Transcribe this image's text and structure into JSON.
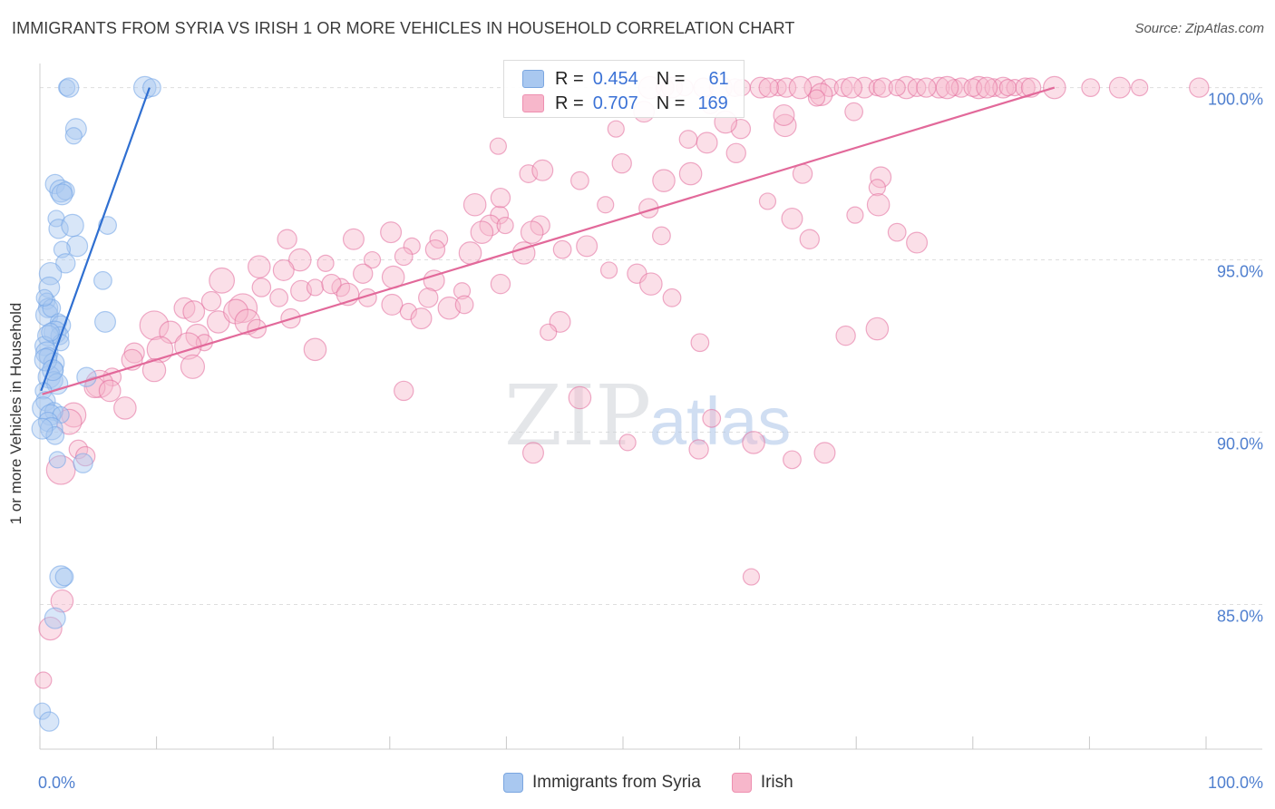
{
  "header": {
    "title": "IMMIGRANTS FROM SYRIA VS IRISH 1 OR MORE VEHICLES IN HOUSEHOLD CORRELATION CHART",
    "source": "Source: ZipAtlas.com"
  },
  "watermark": {
    "zip": "ZIP",
    "atlas": "atlas"
  },
  "legend": {
    "rows": [
      {
        "r_label": "R =",
        "r_value": "0.454",
        "n_label": "N =",
        "n_value": "61",
        "color": "#a9c8f0"
      },
      {
        "r_label": "R =",
        "r_value": "0.707",
        "n_label": "N =",
        "n_value": "169",
        "color": "#f7b7cb"
      }
    ]
  },
  "bottom_legend": {
    "items": [
      {
        "label": "Immigrants from Syria",
        "color": "#a9c8f0"
      },
      {
        "label": "Irish",
        "color": "#f7b7cb"
      }
    ]
  },
  "chart_data": {
    "type": "scatter",
    "title": "IMMIGRANTS FROM SYRIA VS IRISH 1 OR MORE VEHICLES IN HOUSEHOLD CORRELATION CHART",
    "xlabel": "",
    "ylabel": "1 or more Vehicles in Household",
    "xlim": [
      0,
      100
    ],
    "ylim": [
      80.8,
      100.7
    ],
    "x_tick_labels": [
      "0.0%",
      "100.0%"
    ],
    "y_ticks": [
      85,
      90,
      95,
      100
    ],
    "y_tick_labels": [
      "85.0%",
      "90.0%",
      "95.0%",
      "100.0%"
    ],
    "grid": true,
    "series": [
      {
        "name": "Immigrants from Syria",
        "color": "#6fa3e6",
        "fill": "#a9c8f0",
        "trend": {
          "x": [
            0.1,
            9.4
          ],
          "y": [
            91.2,
            100.0
          ]
        },
        "points": [
          [
            2.3,
            100
          ],
          [
            2.5,
            100
          ],
          [
            9.0,
            100
          ],
          [
            9.6,
            100
          ],
          [
            3.1,
            98.8
          ],
          [
            2.9,
            98.6
          ],
          [
            1.3,
            97.2
          ],
          [
            1.8,
            97.0
          ],
          [
            2.2,
            97.0
          ],
          [
            1.9,
            96.9
          ],
          [
            1.4,
            96.2
          ],
          [
            1.6,
            95.9
          ],
          [
            2.8,
            96.0
          ],
          [
            5.8,
            96.0
          ],
          [
            3.2,
            95.4
          ],
          [
            1.9,
            95.3
          ],
          [
            2.2,
            94.9
          ],
          [
            0.9,
            94.6
          ],
          [
            5.4,
            94.4
          ],
          [
            0.8,
            94.2
          ],
          [
            0.6,
            93.8
          ],
          [
            0.7,
            93.6
          ],
          [
            0.6,
            93.4
          ],
          [
            1.0,
            93.6
          ],
          [
            5.6,
            93.2
          ],
          [
            1.6,
            93.2
          ],
          [
            1.8,
            93.1
          ],
          [
            1.3,
            92.9
          ],
          [
            1.7,
            92.8
          ],
          [
            0.7,
            92.8
          ],
          [
            1.8,
            92.6
          ],
          [
            0.4,
            92.5
          ],
          [
            0.6,
            92.3
          ],
          [
            0.7,
            92.2
          ],
          [
            1.2,
            92.0
          ],
          [
            1.3,
            91.8
          ],
          [
            4.0,
            91.6
          ],
          [
            0.8,
            91.6
          ],
          [
            1.2,
            91.5
          ],
          [
            1.5,
            91.4
          ],
          [
            0.3,
            91.2
          ],
          [
            0.5,
            90.9
          ],
          [
            0.3,
            90.7
          ],
          [
            1.2,
            90.6
          ],
          [
            0.9,
            90.5
          ],
          [
            1.8,
            90.5
          ],
          [
            0.7,
            90.3
          ],
          [
            1.0,
            90.1
          ],
          [
            1.3,
            89.9
          ],
          [
            0.2,
            90.1
          ],
          [
            1.5,
            89.2
          ],
          [
            3.7,
            89.1
          ],
          [
            1.8,
            85.8
          ],
          [
            2.1,
            85.8
          ],
          [
            1.3,
            84.6
          ],
          [
            0.2,
            81.9
          ],
          [
            0.8,
            81.6
          ],
          [
            0.5,
            92.1
          ],
          [
            0.9,
            92.9
          ],
          [
            1.1,
            91.8
          ],
          [
            0.4,
            93.9
          ]
        ]
      },
      {
        "name": "Irish",
        "color": "#e2699a",
        "fill": "#f7b7cb",
        "trend": {
          "x": [
            0.2,
            87.0
          ],
          "y": [
            91.1,
            100.0
          ]
        },
        "points": [
          [
            55.3,
            100
          ],
          [
            56.9,
            100
          ],
          [
            58.4,
            100
          ],
          [
            59.6,
            100
          ],
          [
            61.8,
            100
          ],
          [
            63.3,
            100
          ],
          [
            64.0,
            100
          ],
          [
            66.5,
            100
          ],
          [
            67.7,
            100
          ],
          [
            70.7,
            100
          ],
          [
            71.8,
            100
          ],
          [
            72.3,
            100
          ],
          [
            74.3,
            100
          ],
          [
            75.2,
            100
          ],
          [
            77.1,
            100
          ],
          [
            78.4,
            100
          ],
          [
            79.0,
            100
          ],
          [
            80.5,
            100
          ],
          [
            81.8,
            100
          ],
          [
            82.6,
            100
          ],
          [
            83.6,
            100
          ],
          [
            84.5,
            100
          ],
          [
            87.0,
            100
          ],
          [
            90.1,
            100
          ],
          [
            92.6,
            100
          ],
          [
            94.3,
            100
          ],
          [
            99.4,
            100
          ],
          [
            52.3,
            100
          ],
          [
            53.6,
            100
          ],
          [
            54.2,
            100
          ],
          [
            60.2,
            100
          ],
          [
            62.5,
            100
          ],
          [
            65.2,
            100
          ],
          [
            68.9,
            100
          ],
          [
            69.6,
            100
          ],
          [
            73.5,
            100
          ],
          [
            76.0,
            100
          ],
          [
            77.8,
            100
          ],
          [
            80.0,
            100
          ],
          [
            81.2,
            100
          ],
          [
            83.0,
            100
          ],
          [
            85.0,
            100
          ],
          [
            67.0,
            99.8
          ],
          [
            57.5,
            99.5
          ],
          [
            51.8,
            99.3
          ],
          [
            49.4,
            98.8
          ],
          [
            60.1,
            98.8
          ],
          [
            63.9,
            98.9
          ],
          [
            55.6,
            98.5
          ],
          [
            57.2,
            98.4
          ],
          [
            39.3,
            98.3
          ],
          [
            49.9,
            97.8
          ],
          [
            55.8,
            97.5
          ],
          [
            46.3,
            97.3
          ],
          [
            72.1,
            97.4
          ],
          [
            71.8,
            97.1
          ],
          [
            59.7,
            98.1
          ],
          [
            53.5,
            97.3
          ],
          [
            41.9,
            97.5
          ],
          [
            43.1,
            97.6
          ],
          [
            48.5,
            96.6
          ],
          [
            52.2,
            96.5
          ],
          [
            37.3,
            96.6
          ],
          [
            39.4,
            96.3
          ],
          [
            38.6,
            96.0
          ],
          [
            39.9,
            96.0
          ],
          [
            42.9,
            96.0
          ],
          [
            37.9,
            95.8
          ],
          [
            34.2,
            95.6
          ],
          [
            30.1,
            95.8
          ],
          [
            31.9,
            95.4
          ],
          [
            33.9,
            95.3
          ],
          [
            36.9,
            95.2
          ],
          [
            31.2,
            95.1
          ],
          [
            26.9,
            95.6
          ],
          [
            28.5,
            95.0
          ],
          [
            21.2,
            95.6
          ],
          [
            22.3,
            95.0
          ],
          [
            18.8,
            94.8
          ],
          [
            20.9,
            94.7
          ],
          [
            24.5,
            94.9
          ],
          [
            27.7,
            94.6
          ],
          [
            30.3,
            94.5
          ],
          [
            25.8,
            94.2
          ],
          [
            33.8,
            94.4
          ],
          [
            36.2,
            94.1
          ],
          [
            39.5,
            94.3
          ],
          [
            41.5,
            95.2
          ],
          [
            44.8,
            95.3
          ],
          [
            46.9,
            95.4
          ],
          [
            48.8,
            94.7
          ],
          [
            51.2,
            94.6
          ],
          [
            52.4,
            94.3
          ],
          [
            54.2,
            93.9
          ],
          [
            15.6,
            94.4
          ],
          [
            19.0,
            94.2
          ],
          [
            14.7,
            93.8
          ],
          [
            17.4,
            93.6
          ],
          [
            20.5,
            93.9
          ],
          [
            22.4,
            94.1
          ],
          [
            23.6,
            94.2
          ],
          [
            25.0,
            94.3
          ],
          [
            26.4,
            94.0
          ],
          [
            28.1,
            93.9
          ],
          [
            30.2,
            93.7
          ],
          [
            31.6,
            93.5
          ],
          [
            33.3,
            93.9
          ],
          [
            35.1,
            93.6
          ],
          [
            36.4,
            93.7
          ],
          [
            32.7,
            93.3
          ],
          [
            12.4,
            93.6
          ],
          [
            13.2,
            93.5
          ],
          [
            15.3,
            93.2
          ],
          [
            16.8,
            93.5
          ],
          [
            17.8,
            93.2
          ],
          [
            18.6,
            93.0
          ],
          [
            21.5,
            93.3
          ],
          [
            9.8,
            93.1
          ],
          [
            11.2,
            92.9
          ],
          [
            13.5,
            92.8
          ],
          [
            14.1,
            92.6
          ],
          [
            10.3,
            92.4
          ],
          [
            12.7,
            92.5
          ],
          [
            8.1,
            92.3
          ],
          [
            7.9,
            92.1
          ],
          [
            9.8,
            91.8
          ],
          [
            13.1,
            91.9
          ],
          [
            23.6,
            92.4
          ],
          [
            6.2,
            91.6
          ],
          [
            5.1,
            91.4
          ],
          [
            4.7,
            91.3
          ],
          [
            6.0,
            91.2
          ],
          [
            7.3,
            90.7
          ],
          [
            2.9,
            90.5
          ],
          [
            2.5,
            90.3
          ],
          [
            3.3,
            89.5
          ],
          [
            3.9,
            89.3
          ],
          [
            1.8,
            88.9
          ],
          [
            1.9,
            85.1
          ],
          [
            0.9,
            84.3
          ],
          [
            0.3,
            82.8
          ],
          [
            39.5,
            96.8
          ],
          [
            42.2,
            95.8
          ],
          [
            53.3,
            95.7
          ],
          [
            64.5,
            96.2
          ],
          [
            62.4,
            96.7
          ],
          [
            66.0,
            95.6
          ],
          [
            71.9,
            96.6
          ],
          [
            73.5,
            95.8
          ],
          [
            75.2,
            95.5
          ],
          [
            69.9,
            96.3
          ],
          [
            65.4,
            97.5
          ],
          [
            58.8,
            99.0
          ],
          [
            69.8,
            99.3
          ],
          [
            63.8,
            99.2
          ],
          [
            66.6,
            99.7
          ],
          [
            69.1,
            92.8
          ],
          [
            71.8,
            93.0
          ],
          [
            56.6,
            92.6
          ],
          [
            44.6,
            93.2
          ],
          [
            43.6,
            92.9
          ],
          [
            31.2,
            91.2
          ],
          [
            46.3,
            91.0
          ],
          [
            57.6,
            90.4
          ],
          [
            42.3,
            89.4
          ],
          [
            50.4,
            89.7
          ],
          [
            56.5,
            89.5
          ],
          [
            61.2,
            89.7
          ],
          [
            64.5,
            89.2
          ],
          [
            67.3,
            89.4
          ],
          [
            61.0,
            85.8
          ]
        ]
      }
    ]
  }
}
